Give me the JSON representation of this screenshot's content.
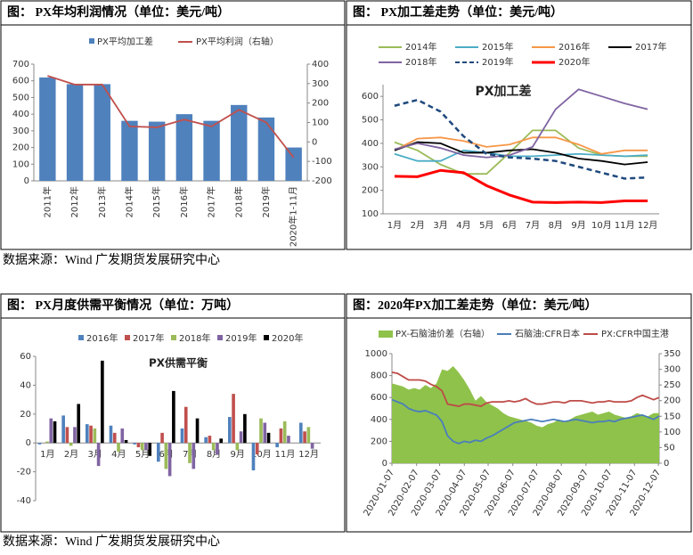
{
  "chart_data": [
    {
      "type": "bar",
      "title": "图：  PX年均利润情况（单位：美元/吨）",
      "categories": [
        "2011年",
        "2012年",
        "2013年",
        "2014年",
        "2015年",
        "2016年",
        "2017年",
        "2018年",
        "2019年",
        "2020年1-11月"
      ],
      "series": [
        {
          "name": "PX平均加工差",
          "color": "#4f81bd",
          "values": [
            620,
            580,
            580,
            360,
            355,
            400,
            360,
            455,
            380,
            200
          ]
        },
        {
          "name": "PX平均利润（右轴）",
          "type": "line",
          "axis": "y2",
          "color": "#c0504d",
          "values": [
            340,
            295,
            295,
            80,
            75,
            115,
            80,
            165,
            100,
            -80
          ]
        }
      ],
      "ylim": [
        0,
        700
      ],
      "yticks": [
        0,
        100,
        200,
        300,
        400,
        500,
        600,
        700
      ],
      "y2lim": [
        -200,
        400
      ],
      "y2ticks": [
        -200,
        -100,
        0,
        100,
        200,
        300,
        400
      ],
      "grid": false
    },
    {
      "type": "line",
      "title": "图：  PX加工差走势（单位：美元/吨）",
      "annotation": "PX加工差",
      "categories": [
        "1月",
        "2月",
        "3月",
        "4月",
        "5月",
        "6月",
        "7月",
        "8月",
        "9月",
        "10月",
        "11月",
        "12月"
      ],
      "series": [
        {
          "name": "2014年",
          "color": "#9bbb59",
          "values": [
            405,
            370,
            310,
            270,
            270,
            360,
            455,
            455,
            380,
            350,
            345,
            345
          ]
        },
        {
          "name": "2015年",
          "color": "#4bacc6",
          "values": [
            355,
            325,
            325,
            370,
            360,
            345,
            345,
            350,
            355,
            350,
            345,
            350
          ]
        },
        {
          "name": "2016年",
          "color": "#f79646",
          "values": [
            370,
            420,
            425,
            410,
            385,
            395,
            425,
            425,
            395,
            355,
            370,
            370
          ]
        },
        {
          "name": "2017年",
          "color": "#000000",
          "values": [
            370,
            405,
            400,
            360,
            360,
            370,
            375,
            360,
            335,
            325,
            310,
            320
          ]
        },
        {
          "name": "2018年",
          "color": "#8064a2",
          "values": [
            375,
            400,
            380,
            350,
            340,
            350,
            385,
            545,
            630,
            600,
            570,
            545
          ]
        },
        {
          "name": "2019年",
          "color": "#1f497d",
          "dash": true,
          "values": [
            560,
            585,
            535,
            430,
            355,
            340,
            335,
            325,
            300,
            275,
            250,
            255
          ]
        },
        {
          "name": "2020年",
          "color": "#ff0000",
          "width": 3,
          "values": [
            260,
            258,
            285,
            275,
            220,
            180,
            150,
            148,
            150,
            148,
            155,
            155
          ]
        }
      ],
      "ylim": [
        100,
        650
      ],
      "yticks": [
        100,
        200,
        300,
        400,
        500,
        600
      ],
      "grid": false
    },
    {
      "type": "bar",
      "title": "图：  PX月度供需平衡情况（单位：万吨）",
      "annotation": "PX供需平衡",
      "categories": [
        "1月",
        "2月",
        "3月",
        "4月",
        "5月",
        "6月",
        "7月",
        "8月",
        "9月",
        "10月",
        "11月",
        "12月"
      ],
      "series": [
        {
          "name": "2016年",
          "color": "#4f81bd",
          "values": [
            -1,
            19,
            13,
            12,
            -1,
            -13,
            10,
            4,
            18,
            -19,
            -3,
            14
          ]
        },
        {
          "name": "2017年",
          "color": "#c0504d",
          "values": [
            0,
            11,
            12,
            7,
            -3,
            7,
            25,
            5,
            34,
            -8,
            10,
            8
          ]
        },
        {
          "name": "2018年",
          "color": "#9bbb59",
          "values": [
            1,
            -2,
            10,
            -6,
            -5,
            -18,
            -14,
            -5,
            -5,
            17,
            15,
            11
          ]
        },
        {
          "name": "2019年",
          "color": "#8064a2",
          "values": [
            17,
            11,
            -16,
            10,
            -5,
            -23,
            -18,
            -8,
            8,
            14,
            5,
            -4
          ]
        },
        {
          "name": "2020年",
          "color": "#000000",
          "values": [
            15,
            27,
            57,
            2,
            -9,
            36,
            17,
            3,
            20,
            7,
            null,
            null
          ]
        }
      ],
      "ylim": [
        -40,
        60
      ],
      "yticks": [
        -40,
        -20,
        0,
        20,
        40,
        60
      ],
      "grid": false
    },
    {
      "type": "line",
      "title": "图：2020年PX加工差走势（单位：美元/吨）",
      "x": [
        "2020-01-07",
        "2020-01-14",
        "2020-01-21",
        "2020-01-28",
        "2020-02-04",
        "2020-02-11",
        "2020-02-18",
        "2020-02-25",
        "2020-03-03",
        "2020-03-10",
        "2020-03-17",
        "2020-03-24",
        "2020-03-31",
        "2020-04-07",
        "2020-04-14",
        "2020-04-21",
        "2020-04-28",
        "2020-05-05",
        "2020-05-12",
        "2020-05-19",
        "2020-05-26",
        "2020-06-02",
        "2020-06-09",
        "2020-06-16",
        "2020-06-23",
        "2020-06-30",
        "2020-07-07",
        "2020-07-14",
        "2020-07-21",
        "2020-07-28",
        "2020-08-04",
        "2020-08-11",
        "2020-08-18",
        "2020-08-25",
        "2020-09-01",
        "2020-09-08",
        "2020-09-15",
        "2020-09-22",
        "2020-09-29",
        "2020-10-06",
        "2020-10-13",
        "2020-10-20",
        "2020-10-27",
        "2020-11-03",
        "2020-11-10",
        "2020-11-17",
        "2020-11-24",
        "2020-12-01",
        "2020-12-08"
      ],
      "series": [
        {
          "name": "PX-石脑油价差（右轴）",
          "type": "area",
          "axis": "y2",
          "color": "#8fc24b",
          "values": [
            255,
            250,
            245,
            235,
            240,
            235,
            250,
            240,
            255,
            300,
            295,
            310,
            290,
            265,
            235,
            200,
            215,
            195,
            185,
            175,
            160,
            150,
            145,
            140,
            135,
            130,
            120,
            115,
            125,
            130,
            140,
            130,
            140,
            150,
            155,
            160,
            165,
            155,
            160,
            165,
            155,
            150,
            145,
            150,
            160,
            155,
            150,
            160,
            160
          ]
        },
        {
          "name": "石脑油:CFR日本",
          "color": "#4a7ebb",
          "values": [
            580,
            560,
            540,
            500,
            480,
            470,
            480,
            460,
            440,
            380,
            250,
            200,
            180,
            200,
            190,
            210,
            200,
            230,
            250,
            280,
            310,
            340,
            370,
            380,
            390,
            400,
            390,
            380,
            390,
            400,
            390,
            380,
            390,
            400,
            390,
            380,
            370,
            380,
            380,
            390,
            380,
            400,
            410,
            420,
            430,
            440,
            420,
            400,
            430
          ]
        },
        {
          "name": "PX:CFR中国主港",
          "color": "#be4b48",
          "values": [
            830,
            820,
            790,
            760,
            760,
            760,
            750,
            720,
            700,
            660,
            540,
            530,
            520,
            540,
            540,
            530,
            520,
            550,
            560,
            560,
            560,
            570,
            560,
            570,
            590,
            560,
            540,
            540,
            550,
            560,
            560,
            550,
            570,
            570,
            570,
            560,
            550,
            560,
            560,
            570,
            560,
            560,
            560,
            570,
            600,
            620,
            600,
            580,
            600
          ]
        }
      ],
      "xlim": [
        "2020-01-07",
        "2020-12-08"
      ],
      "xticks": [
        "2020-01-07",
        "2020-02-07",
        "2020-03-07",
        "2020-04-07",
        "2020-05-07",
        "2020-06-07",
        "2020-07-07",
        "2020-08-07",
        "2020-09-07",
        "2020-10-07",
        "2020-11-07",
        "2020-12-07"
      ],
      "ylim": [
        0,
        1000
      ],
      "yticks": [
        0,
        200,
        400,
        600,
        800,
        1000
      ],
      "y2lim": [
        0,
        350
      ],
      "y2ticks": [
        0,
        50,
        100,
        150,
        200,
        250,
        300,
        350
      ],
      "grid": false
    }
  ],
  "sources": [
    "数据来源：Wind 广发期货发展研究中心",
    "数据来源：Wind 广发期货发展研究中心"
  ]
}
